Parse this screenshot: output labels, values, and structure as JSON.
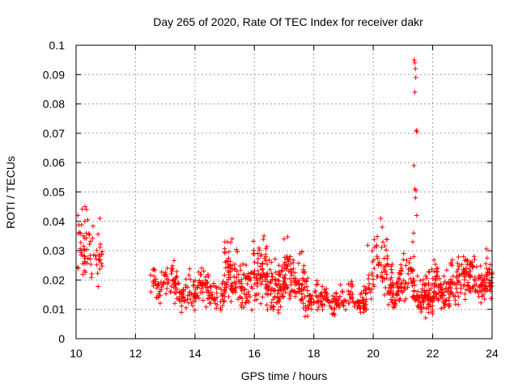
{
  "chart_data": {
    "type": "scatter",
    "title": "Day 265 of 2020, Rate Of TEC Index for receiver dakr",
    "xlabel": "GPS time / hours",
    "ylabel": "ROTI / TECUs",
    "xlim": [
      10,
      24
    ],
    "ylim": [
      0,
      0.1
    ],
    "x_ticks": [
      "10",
      "12",
      "14",
      "16",
      "18",
      "20",
      "22",
      "24"
    ],
    "y_ticks": [
      "0",
      "0.01",
      "0.02",
      "0.03",
      "0.04",
      "0.05",
      "0.06",
      "0.07",
      "0.08",
      "0.09",
      "0.1"
    ],
    "grid": true,
    "marker": "plus",
    "color": "#ff0000",
    "segments": [
      {
        "x0": 10.0,
        "x1": 10.9,
        "ymin": 0.016,
        "ymax": 0.046,
        "mean": 0.029,
        "count": 70
      },
      {
        "x0": 12.5,
        "x1": 13.3,
        "ymin": 0.012,
        "ymax": 0.029,
        "mean": 0.019,
        "count": 60
      },
      {
        "x0": 13.3,
        "x1": 15.0,
        "ymin": 0.009,
        "ymax": 0.025,
        "mean": 0.016,
        "count": 160
      },
      {
        "x0": 15.0,
        "x1": 17.8,
        "ymin": 0.007,
        "ymax": 0.035,
        "mean": 0.019,
        "count": 380
      },
      {
        "x0": 17.8,
        "x1": 19.8,
        "ymin": 0.008,
        "ymax": 0.02,
        "mean": 0.013,
        "count": 170
      },
      {
        "x0": 19.8,
        "x1": 20.5,
        "ymin": 0.012,
        "ymax": 0.042,
        "mean": 0.022,
        "count": 60
      },
      {
        "x0": 20.5,
        "x1": 21.3,
        "ymin": 0.01,
        "ymax": 0.031,
        "mean": 0.019,
        "count": 90
      },
      {
        "x0": 21.3,
        "x1": 22.6,
        "ymin": 0.007,
        "ymax": 0.028,
        "mean": 0.015,
        "count": 190
      },
      {
        "x0": 22.6,
        "x1": 24.0,
        "ymin": 0.01,
        "ymax": 0.032,
        "mean": 0.02,
        "count": 170
      }
    ],
    "peak_points": [
      {
        "x": 21.38,
        "y": 0.095
      },
      {
        "x": 21.4,
        "y": 0.094
      },
      {
        "x": 21.42,
        "y": 0.092
      },
      {
        "x": 21.43,
        "y": 0.089
      },
      {
        "x": 21.4,
        "y": 0.084
      },
      {
        "x": 21.45,
        "y": 0.071
      },
      {
        "x": 21.47,
        "y": 0.0705
      },
      {
        "x": 21.37,
        "y": 0.059
      },
      {
        "x": 21.4,
        "y": 0.051
      },
      {
        "x": 21.44,
        "y": 0.0505
      },
      {
        "x": 21.42,
        "y": 0.048
      },
      {
        "x": 21.46,
        "y": 0.042
      },
      {
        "x": 21.36,
        "y": 0.036
      },
      {
        "x": 21.33,
        "y": 0.033
      },
      {
        "x": 10.3,
        "y": 0.045
      },
      {
        "x": 10.35,
        "y": 0.044
      },
      {
        "x": 10.8,
        "y": 0.041
      },
      {
        "x": 20.25,
        "y": 0.041
      },
      {
        "x": 20.3,
        "y": 0.038
      },
      {
        "x": 15.25,
        "y": 0.034
      },
      {
        "x": 17.0,
        "y": 0.034
      }
    ]
  }
}
